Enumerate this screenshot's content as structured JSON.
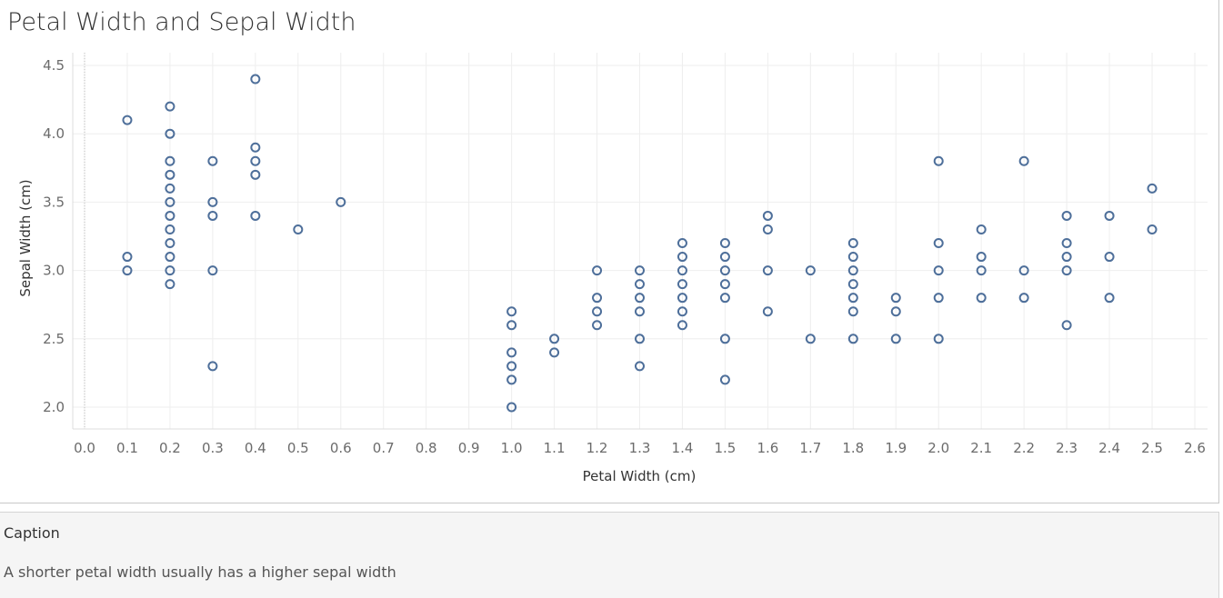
{
  "chart_data": {
    "type": "scatter",
    "title": "Petal Width and Sepal Width",
    "xlabel": "Petal Width (cm)",
    "ylabel": "Sepal Width (cm)",
    "xlim": [
      0.0,
      2.6
    ],
    "ylim": [
      2.0,
      4.5
    ],
    "x_ticks": [
      "0.0",
      "0.1",
      "0.2",
      "0.3",
      "0.4",
      "0.5",
      "0.6",
      "0.7",
      "0.8",
      "0.9",
      "1.0",
      "1.1",
      "1.2",
      "1.3",
      "1.4",
      "1.5",
      "1.6",
      "1.7",
      "1.8",
      "1.9",
      "2.0",
      "2.1",
      "2.2",
      "2.3",
      "2.4",
      "2.5",
      "2.6"
    ],
    "y_ticks": [
      "2.0",
      "2.5",
      "3.0",
      "3.5",
      "4.0",
      "4.5"
    ],
    "grid": true,
    "marker": "hollow-circle",
    "color": "#4e6f9a",
    "points": [
      [
        0.1,
        4.1
      ],
      [
        0.1,
        3.1
      ],
      [
        0.1,
        3.0
      ],
      [
        0.2,
        4.2
      ],
      [
        0.2,
        4.0
      ],
      [
        0.2,
        3.8
      ],
      [
        0.2,
        3.7
      ],
      [
        0.2,
        3.6
      ],
      [
        0.2,
        3.5
      ],
      [
        0.2,
        3.4
      ],
      [
        0.2,
        3.3
      ],
      [
        0.2,
        3.2
      ],
      [
        0.2,
        3.1
      ],
      [
        0.2,
        3.0
      ],
      [
        0.2,
        2.9
      ],
      [
        0.3,
        3.8
      ],
      [
        0.3,
        3.5
      ],
      [
        0.3,
        3.4
      ],
      [
        0.3,
        3.0
      ],
      [
        0.3,
        2.3
      ],
      [
        0.4,
        4.4
      ],
      [
        0.4,
        3.9
      ],
      [
        0.4,
        3.8
      ],
      [
        0.4,
        3.7
      ],
      [
        0.4,
        3.4
      ],
      [
        0.5,
        3.3
      ],
      [
        0.6,
        3.5
      ],
      [
        1.0,
        2.7
      ],
      [
        1.0,
        2.6
      ],
      [
        1.0,
        2.4
      ],
      [
        1.0,
        2.3
      ],
      [
        1.0,
        2.2
      ],
      [
        1.0,
        2.0
      ],
      [
        1.1,
        2.5
      ],
      [
        1.1,
        2.4
      ],
      [
        1.2,
        3.0
      ],
      [
        1.2,
        2.8
      ],
      [
        1.2,
        2.7
      ],
      [
        1.2,
        2.6
      ],
      [
        1.3,
        3.0
      ],
      [
        1.3,
        2.9
      ],
      [
        1.3,
        2.8
      ],
      [
        1.3,
        2.7
      ],
      [
        1.3,
        2.5
      ],
      [
        1.3,
        2.3
      ],
      [
        1.4,
        3.2
      ],
      [
        1.4,
        3.1
      ],
      [
        1.4,
        3.0
      ],
      [
        1.4,
        2.9
      ],
      [
        1.4,
        2.8
      ],
      [
        1.4,
        2.7
      ],
      [
        1.4,
        2.6
      ],
      [
        1.5,
        3.2
      ],
      [
        1.5,
        3.1
      ],
      [
        1.5,
        3.0
      ],
      [
        1.5,
        2.9
      ],
      [
        1.5,
        2.8
      ],
      [
        1.5,
        2.5
      ],
      [
        1.5,
        2.2
      ],
      [
        1.6,
        3.4
      ],
      [
        1.6,
        3.3
      ],
      [
        1.6,
        3.0
      ],
      [
        1.6,
        2.7
      ],
      [
        1.7,
        3.0
      ],
      [
        1.7,
        2.5
      ],
      [
        1.8,
        3.2
      ],
      [
        1.8,
        3.1
      ],
      [
        1.8,
        3.0
      ],
      [
        1.8,
        2.9
      ],
      [
        1.8,
        2.8
      ],
      [
        1.8,
        2.7
      ],
      [
        1.8,
        2.5
      ],
      [
        1.9,
        2.8
      ],
      [
        1.9,
        2.7
      ],
      [
        1.9,
        2.5
      ],
      [
        2.0,
        3.8
      ],
      [
        2.0,
        3.2
      ],
      [
        2.0,
        3.0
      ],
      [
        2.0,
        2.8
      ],
      [
        2.0,
        2.5
      ],
      [
        2.1,
        3.3
      ],
      [
        2.1,
        3.1
      ],
      [
        2.1,
        3.0
      ],
      [
        2.1,
        2.8
      ],
      [
        2.2,
        3.8
      ],
      [
        2.2,
        3.0
      ],
      [
        2.2,
        2.8
      ],
      [
        2.3,
        3.4
      ],
      [
        2.3,
        3.2
      ],
      [
        2.3,
        3.1
      ],
      [
        2.3,
        3.0
      ],
      [
        2.3,
        2.6
      ],
      [
        2.4,
        3.4
      ],
      [
        2.4,
        3.1
      ],
      [
        2.4,
        2.8
      ],
      [
        2.5,
        3.6
      ],
      [
        2.5,
        3.3
      ]
    ]
  },
  "caption": {
    "heading": "Caption",
    "text": "A shorter petal width usually has a higher sepal width"
  }
}
